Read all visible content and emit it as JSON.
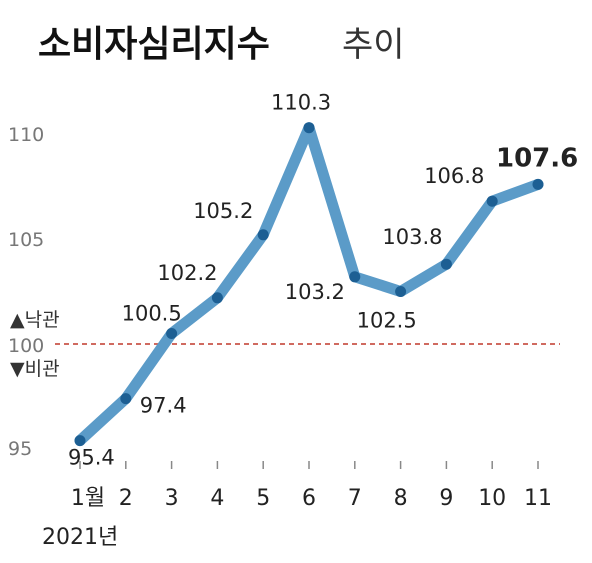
{
  "chart_data": {
    "type": "line",
    "title": "소비자심리지수",
    "subtitle": "추이",
    "x": [
      "1월",
      "2",
      "3",
      "4",
      "5",
      "6",
      "7",
      "8",
      "9",
      "10",
      "11"
    ],
    "values": [
      95.4,
      97.4,
      100.5,
      102.2,
      105.2,
      110.3,
      103.2,
      102.5,
      103.8,
      106.8,
      107.6
    ],
    "data_labels": [
      "95.4",
      "97.4",
      "100.5",
      "102.2",
      "105.2",
      "110.3",
      "103.2",
      "102.5",
      "103.8",
      "106.8",
      "107.6"
    ],
    "y_ticks": [
      "95",
      "100",
      "105",
      "110"
    ],
    "ylim": [
      95,
      110
    ],
    "year_label": "2021년",
    "reference_line": {
      "value": 100,
      "above_label": "▲낙관",
      "below_label": "▼비관"
    },
    "grid": false,
    "colors": {
      "line": "#5b9bc8",
      "marker": "#1d5f93",
      "reference": "#c0392b",
      "axis_text": "#777777",
      "text": "#222222"
    }
  }
}
